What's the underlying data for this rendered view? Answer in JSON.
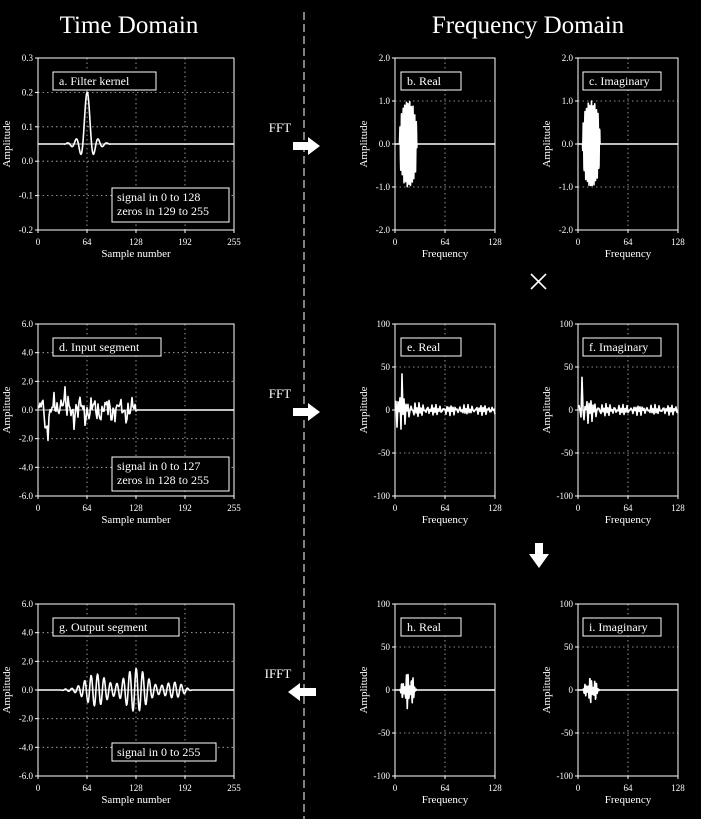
{
  "headers": {
    "time": "Time Domain",
    "freq": "Frequency Domain"
  },
  "operations": {
    "fft1": "FFT",
    "fft2": "FFT",
    "ifft": "IFFT"
  },
  "charts": [
    {
      "id": "a",
      "title": "a.  Filter kernel",
      "ylabel": "Amplitude",
      "xlabel": "Sample number",
      "yticks": [
        "0.3",
        "0.2",
        "0.1",
        "0.0",
        "-0.1",
        "-0.2"
      ],
      "xticks": [
        "0",
        "64",
        "128",
        "192",
        "255"
      ],
      "note": [
        "signal in 0 to 128",
        "zeros in 129 to 255"
      ]
    },
    {
      "id": "b",
      "title": "b.  Real",
      "ylabel": "Amplitude",
      "xlabel": "Frequency",
      "yticks": [
        "2.0",
        "1.0",
        "0.0",
        "-1.0",
        "-2.0"
      ],
      "xticks": [
        "0",
        "64",
        "128"
      ]
    },
    {
      "id": "c",
      "title": "c.  Imaginary",
      "ylabel": "Amplitude",
      "xlabel": "Frequency",
      "yticks": [
        "2.0",
        "1.0",
        "0.0",
        "-1.0",
        "-2.0"
      ],
      "xticks": [
        "0",
        "64",
        "128"
      ]
    },
    {
      "id": "d",
      "title": "d.  Input segment",
      "ylabel": "Amplitude",
      "xlabel": "Sample number",
      "yticks": [
        "6.0",
        "4.0",
        "2.0",
        "0.0",
        "-2.0",
        "-4.0",
        "-6.0"
      ],
      "xticks": [
        "0",
        "64",
        "128",
        "192",
        "255"
      ],
      "note": [
        "signal in 0 to 127",
        "zeros in 128 to 255"
      ]
    },
    {
      "id": "e",
      "title": "e.  Real",
      "ylabel": "Amplitude",
      "xlabel": "Frequency",
      "yticks": [
        "100",
        "50",
        "0",
        "-50",
        "-100"
      ],
      "xticks": [
        "0",
        "64",
        "128"
      ]
    },
    {
      "id": "f",
      "title": "f.  Imaginary",
      "ylabel": "Amplitude",
      "xlabel": "Frequency",
      "yticks": [
        "100",
        "50",
        "0",
        "-50",
        "-100"
      ],
      "xticks": [
        "0",
        "64",
        "128"
      ]
    },
    {
      "id": "g",
      "title": "g.  Output segment",
      "ylabel": "Amplitude",
      "xlabel": "Sample number",
      "yticks": [
        "6.0",
        "4.0",
        "2.0",
        "0.0",
        "-2.0",
        "-4.0",
        "-6.0"
      ],
      "xticks": [
        "0",
        "64",
        "128",
        "192",
        "255"
      ],
      "note": [
        "signal in 0 to 255"
      ]
    },
    {
      "id": "h",
      "title": "h.  Real",
      "ylabel": "Amplitude",
      "xlabel": "Frequency",
      "yticks": [
        "100",
        "50",
        "0",
        "-50",
        "-100"
      ],
      "xticks": [
        "0",
        "64",
        "128"
      ]
    },
    {
      "id": "i",
      "title": "i.  Imaginary",
      "ylabel": "Amplitude",
      "xlabel": "Frequency",
      "yticks": [
        "100",
        "50",
        "0",
        "-50",
        "-100"
      ],
      "xticks": [
        "0",
        "64",
        "128"
      ]
    }
  ]
}
